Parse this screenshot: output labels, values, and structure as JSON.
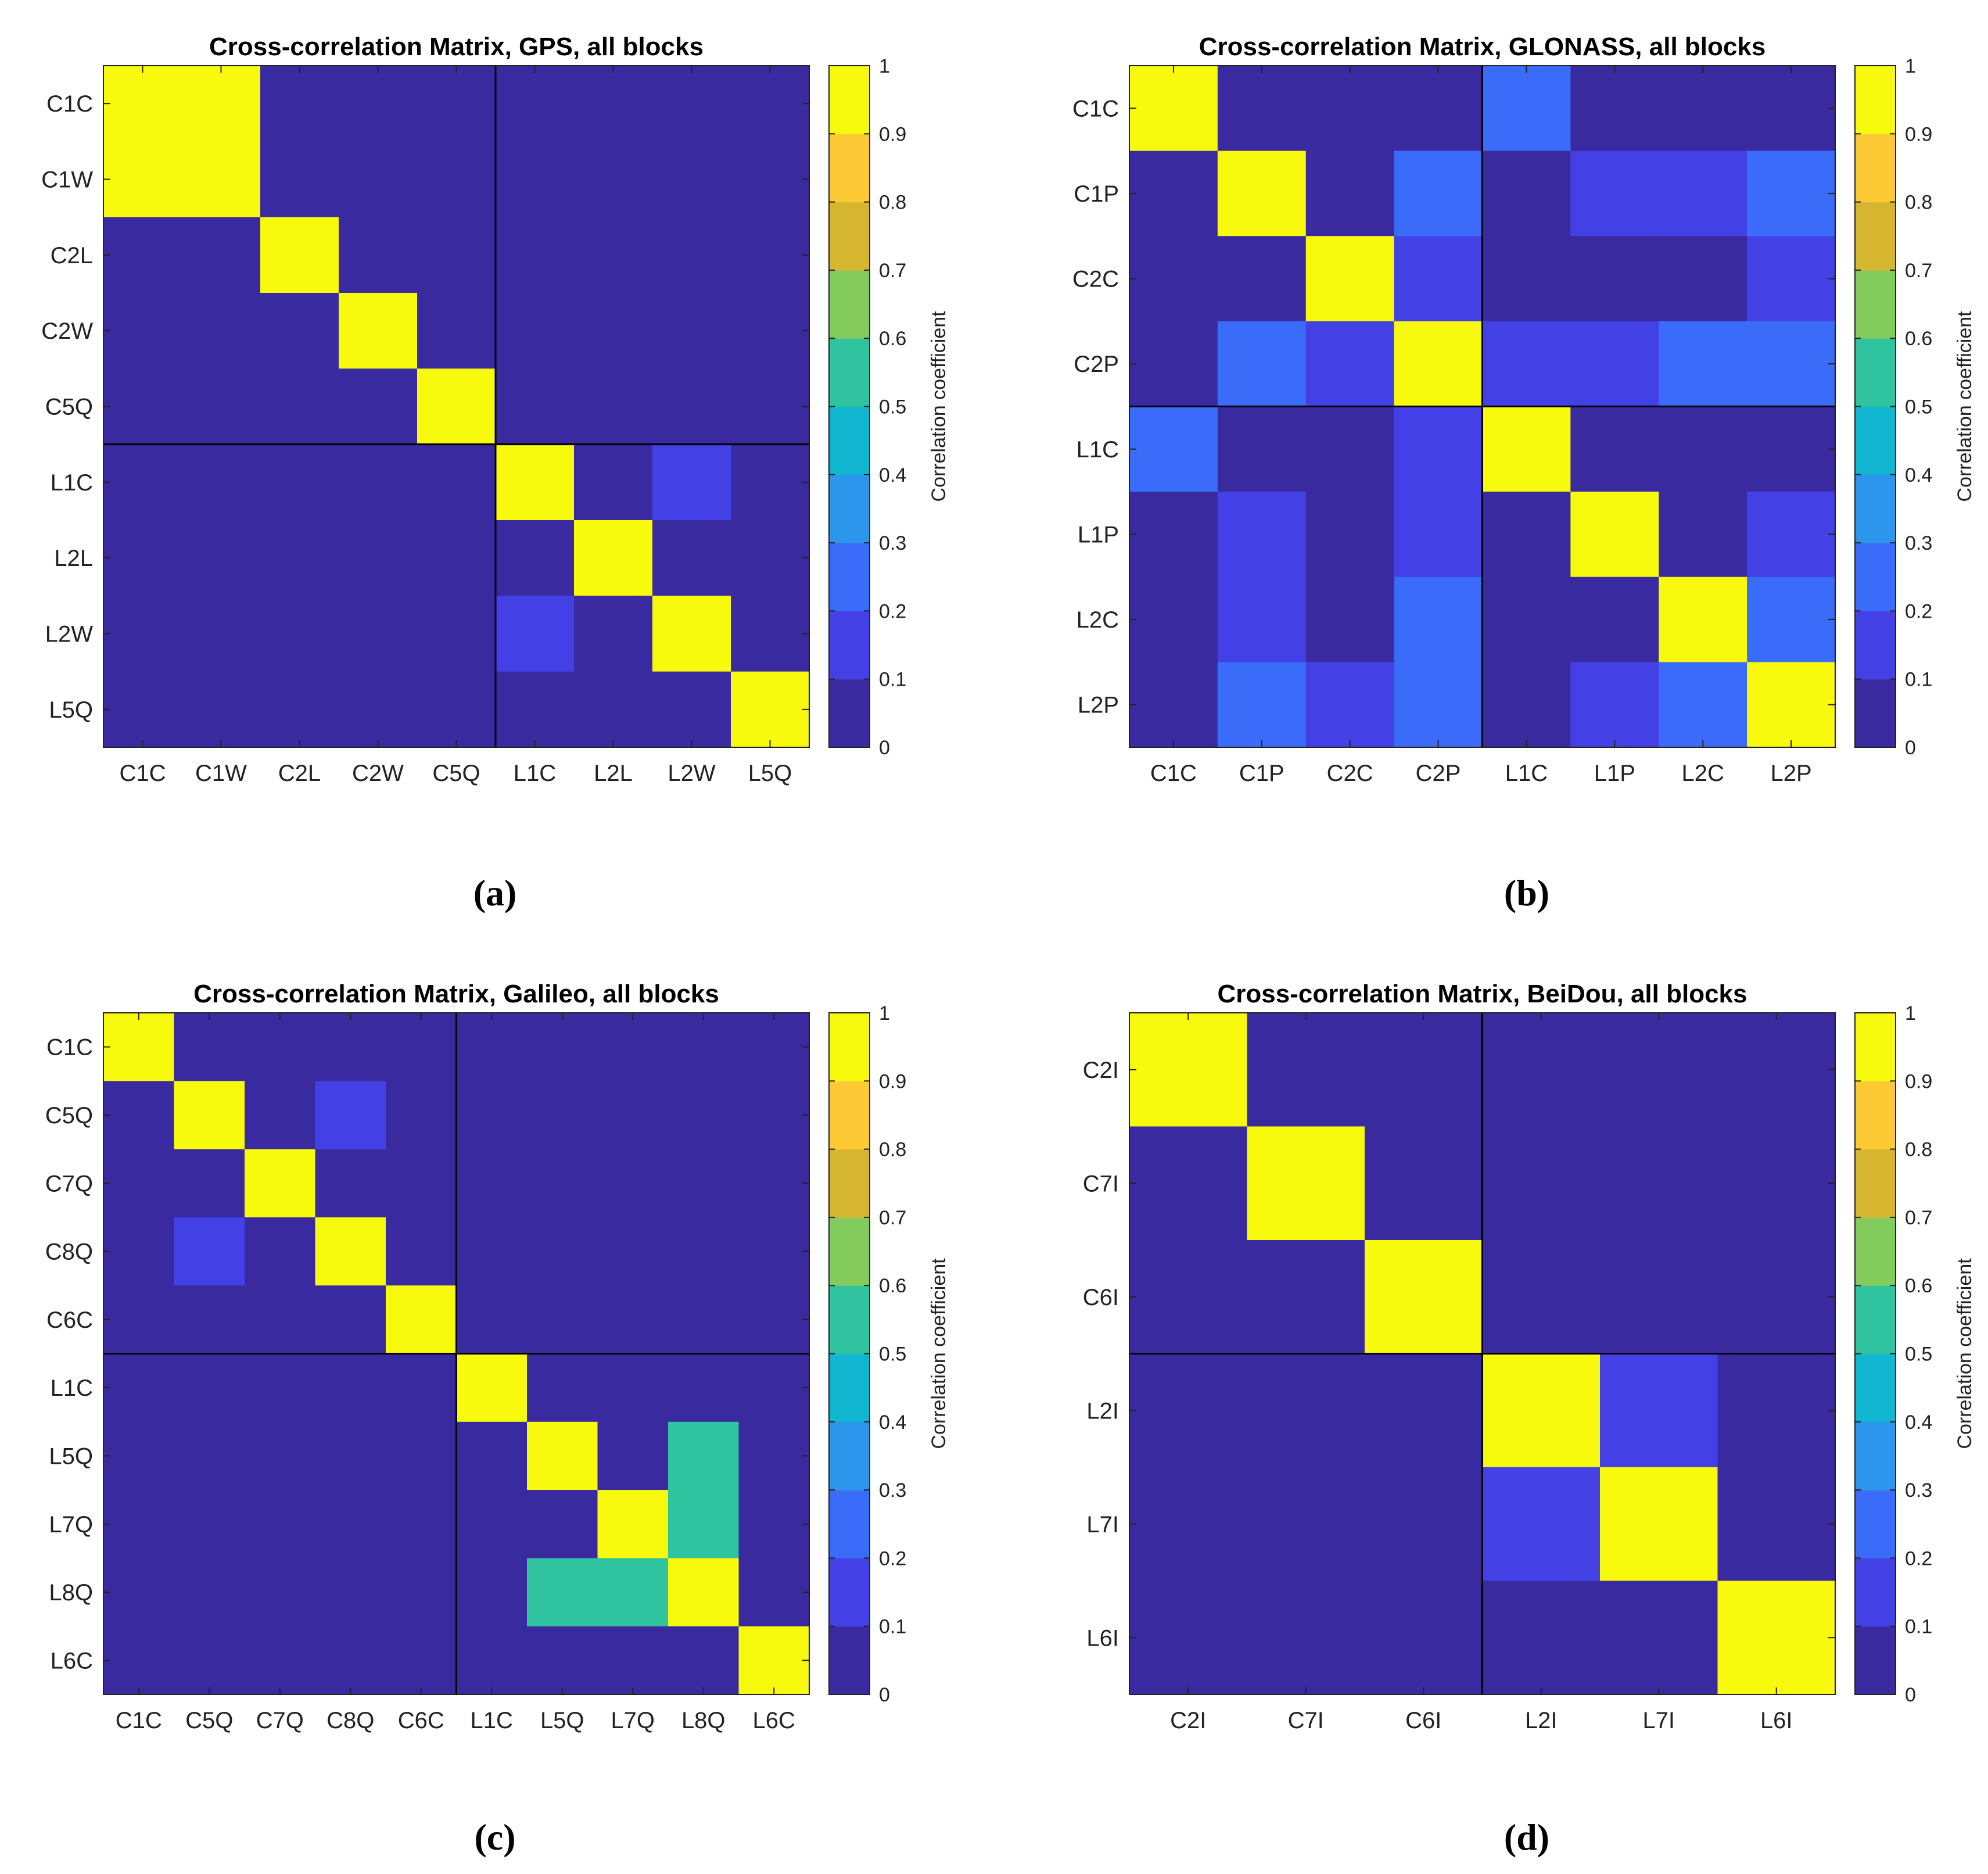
{
  "figure": {
    "captions": [
      "(a)",
      "(b)",
      "(c)",
      "(d)"
    ],
    "colorbar": {
      "label": "Correlation coefficient",
      "ticks": [
        "0",
        "0.1",
        "0.2",
        "0.3",
        "0.4",
        "0.5",
        "0.6",
        "0.7",
        "0.8",
        "0.9",
        "1"
      ],
      "colors": [
        "#3a2aa0",
        "#4341e5",
        "#3b6cf9",
        "#2c96ec",
        "#11b6d1",
        "#2fc49f",
        "#84cb5e",
        "#d6b52f",
        "#fbca35",
        "#f8fa0e"
      ]
    }
  },
  "chart_data": [
    {
      "type": "heatmap",
      "title": "Cross-correlation Matrix, GPS, all blocks",
      "caption": "(a)",
      "labels": [
        "C1C",
        "C1W",
        "C2L",
        "C2W",
        "C5Q",
        "L1C",
        "L2L",
        "L2W",
        "L5Q"
      ],
      "block_split": 5,
      "zlim": [
        0,
        1
      ],
      "colorbar_label": "Correlation coefficient",
      "matrix": [
        [
          1,
          1,
          0,
          0,
          0,
          0,
          0,
          0,
          0
        ],
        [
          1,
          1,
          0,
          0,
          0,
          0,
          0,
          0,
          0
        ],
        [
          0,
          0,
          1,
          0,
          0,
          0,
          0,
          0,
          0
        ],
        [
          0,
          0,
          0,
          1,
          0,
          0,
          0,
          0,
          0
        ],
        [
          0,
          0,
          0,
          0,
          1,
          0,
          0,
          0,
          0
        ],
        [
          0,
          0,
          0,
          0,
          0,
          1,
          0,
          0.15,
          0
        ],
        [
          0,
          0,
          0,
          0,
          0,
          0,
          1,
          0,
          0
        ],
        [
          0,
          0,
          0,
          0,
          0,
          0.15,
          0,
          1,
          0
        ],
        [
          0,
          0,
          0,
          0,
          0,
          0,
          0,
          0,
          1
        ]
      ]
    },
    {
      "type": "heatmap",
      "title": "Cross-correlation Matrix, GLONASS, all blocks",
      "caption": "(b)",
      "labels": [
        "C1C",
        "C1P",
        "C2C",
        "C2P",
        "L1C",
        "L1P",
        "L2C",
        "L2P"
      ],
      "block_split": 4,
      "zlim": [
        0,
        1
      ],
      "colorbar_label": "Correlation coefficient",
      "matrix": [
        [
          1,
          0,
          0,
          0,
          0.25,
          0,
          0,
          0
        ],
        [
          0,
          1,
          0,
          0.25,
          0,
          0.15,
          0.15,
          0.25
        ],
        [
          0,
          0,
          1,
          0.15,
          0,
          0,
          0,
          0.15
        ],
        [
          0,
          0.25,
          0.15,
          1,
          0.15,
          0.15,
          0.25,
          0.25
        ],
        [
          0.25,
          0,
          0,
          0.15,
          1,
          0,
          0,
          0
        ],
        [
          0,
          0.15,
          0,
          0.15,
          0,
          1,
          0,
          0.15
        ],
        [
          0,
          0.15,
          0,
          0.25,
          0,
          0,
          1,
          0.25
        ],
        [
          0,
          0.25,
          0.15,
          0.25,
          0,
          0.15,
          0.25,
          1
        ]
      ]
    },
    {
      "type": "heatmap",
      "title": "Cross-correlation Matrix, Galileo, all blocks",
      "caption": "(c)",
      "labels": [
        "C1C",
        "C5Q",
        "C7Q",
        "C8Q",
        "C6C",
        "L1C",
        "L5Q",
        "L7Q",
        "L8Q",
        "L6C"
      ],
      "block_split": 5,
      "zlim": [
        0,
        1
      ],
      "colorbar_label": "Correlation coefficient",
      "matrix": [
        [
          1,
          0,
          0,
          0,
          0,
          0,
          0,
          0,
          0,
          0
        ],
        [
          0,
          1,
          0,
          0.15,
          0,
          0,
          0,
          0,
          0,
          0
        ],
        [
          0,
          0,
          1,
          0,
          0,
          0,
          0,
          0,
          0,
          0
        ],
        [
          0,
          0.15,
          0,
          1,
          0,
          0,
          0,
          0,
          0,
          0
        ],
        [
          0,
          0,
          0,
          0,
          1,
          0,
          0,
          0,
          0,
          0
        ],
        [
          0,
          0,
          0,
          0,
          0,
          1,
          0,
          0,
          0,
          0
        ],
        [
          0,
          0,
          0,
          0,
          0,
          0,
          1,
          0,
          0.55,
          0
        ],
        [
          0,
          0,
          0,
          0,
          0,
          0,
          0,
          1,
          0.55,
          0
        ],
        [
          0,
          0,
          0,
          0,
          0,
          0,
          0.55,
          0.55,
          1,
          0
        ],
        [
          0,
          0,
          0,
          0,
          0,
          0,
          0,
          0,
          0,
          1
        ]
      ]
    },
    {
      "type": "heatmap",
      "title": "Cross-correlation Matrix, BeiDou, all blocks",
      "caption": "(d)",
      "labels": [
        "C2I",
        "C7I",
        "C6I",
        "L2I",
        "L7I",
        "L6I"
      ],
      "block_split": 3,
      "zlim": [
        0,
        1
      ],
      "colorbar_label": "Correlation coefficient",
      "matrix": [
        [
          1,
          0,
          0,
          0,
          0,
          0
        ],
        [
          0,
          1,
          0,
          0,
          0,
          0
        ],
        [
          0,
          0,
          1,
          0,
          0,
          0
        ],
        [
          0,
          0,
          0,
          1,
          0.15,
          0
        ],
        [
          0,
          0,
          0,
          0.15,
          1,
          0
        ],
        [
          0,
          0,
          0,
          0,
          0,
          1
        ]
      ]
    }
  ]
}
